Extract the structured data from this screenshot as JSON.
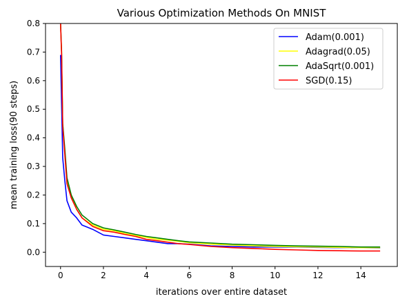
{
  "chart_data": {
    "type": "line",
    "title": "Various Optimization Methods On MNIST",
    "xlabel": "iterations over entire dataset",
    "ylabel": "mean training loss(90 steps)",
    "xlim": [
      -0.7,
      15.7
    ],
    "ylim": [
      -0.05,
      0.8
    ],
    "xticks": [
      0,
      2,
      4,
      6,
      8,
      10,
      12,
      14
    ],
    "yticks": [
      0.0,
      0.1,
      0.2,
      0.3,
      0.4,
      0.5,
      0.6,
      0.7,
      0.8
    ],
    "grid": false,
    "legend_position": "top-right",
    "x": [
      0,
      0.05,
      0.1,
      0.2,
      0.3,
      0.5,
      0.75,
      1,
      1.5,
      2,
      2.5,
      3,
      3.5,
      4,
      4.5,
      5,
      5.5,
      6,
      7,
      8,
      9,
      10,
      11,
      12,
      13,
      14,
      14.9
    ],
    "series": [
      {
        "name": "Adam(0.001)",
        "color": "#0000ff",
        "values": [
          0.69,
          0.52,
          0.33,
          0.25,
          0.18,
          0.14,
          0.12,
          0.095,
          0.08,
          0.06,
          0.055,
          0.05,
          0.045,
          0.04,
          0.035,
          0.03,
          0.03,
          0.028,
          0.022,
          0.02,
          0.018,
          0.018,
          0.018,
          0.017,
          0.016,
          0.016,
          0.015
        ]
      },
      {
        "name": "Adagrad(0.05)",
        "color": "#ffff00",
        "values": [
          0.8,
          0.7,
          0.45,
          0.35,
          0.25,
          0.2,
          0.15,
          0.12,
          0.095,
          0.08,
          0.075,
          0.065,
          0.058,
          0.052,
          0.045,
          0.042,
          0.038,
          0.033,
          0.028,
          0.025,
          0.022,
          0.02,
          0.019,
          0.018,
          0.017,
          0.016,
          0.016
        ]
      },
      {
        "name": "AdaSqrt(0.001)",
        "color": "#008000",
        "values": [
          0.8,
          0.7,
          0.45,
          0.36,
          0.26,
          0.2,
          0.16,
          0.13,
          0.1,
          0.085,
          0.078,
          0.07,
          0.062,
          0.055,
          0.05,
          0.045,
          0.04,
          0.036,
          0.032,
          0.028,
          0.026,
          0.024,
          0.022,
          0.021,
          0.02,
          0.018,
          0.018
        ]
      },
      {
        "name": "SGD(0.15)",
        "color": "#ff0000",
        "values": [
          0.8,
          0.69,
          0.44,
          0.34,
          0.24,
          0.19,
          0.15,
          0.12,
          0.09,
          0.075,
          0.07,
          0.062,
          0.055,
          0.045,
          0.04,
          0.035,
          0.03,
          0.027,
          0.02,
          0.016,
          0.013,
          0.01,
          0.008,
          0.006,
          0.005,
          0.004,
          0.004
        ]
      }
    ]
  }
}
